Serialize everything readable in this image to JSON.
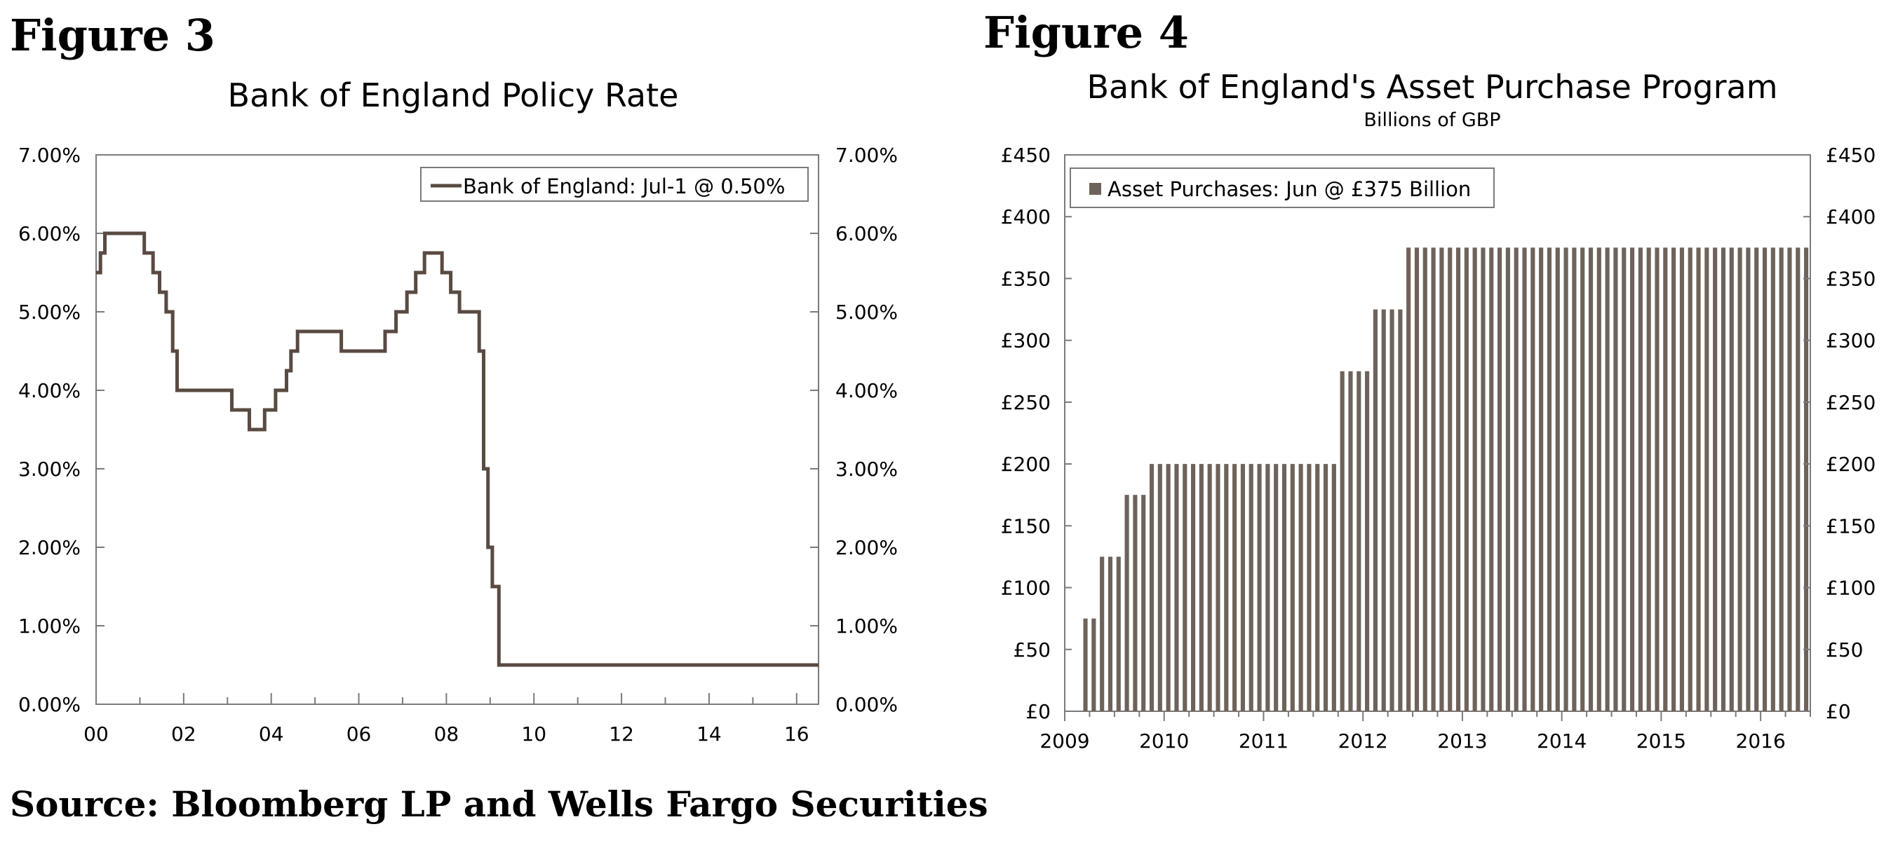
{
  "figures": [
    {
      "label": "Figure 3",
      "chart_data": {
        "type": "line",
        "title": "Bank of England Policy Rate",
        "subtitle": "",
        "xlabel": "",
        "ylabel": "",
        "x_unit": "year",
        "xlim": [
          2000.0,
          2016.5
        ],
        "ylim": [
          0,
          7
        ],
        "y_ticks": [
          "0.00%",
          "1.00%",
          "2.00%",
          "3.00%",
          "4.00%",
          "5.00%",
          "6.00%",
          "7.00%"
        ],
        "y_tick_values": [
          0,
          1,
          2,
          3,
          4,
          5,
          6,
          7
        ],
        "x_ticks": [
          "00",
          "02",
          "04",
          "06",
          "08",
          "10",
          "12",
          "14",
          "16"
        ],
        "x_tick_values": [
          2000,
          2002,
          2004,
          2006,
          2008,
          2010,
          2012,
          2014,
          2016
        ],
        "dual_axis": true,
        "grid": false,
        "legend_position": "top-right",
        "series": [
          {
            "name": "Bank of England: Jul-1 @ 0.50%",
            "color": "#594a42",
            "x": [
              2000.0,
              2000.1,
              2000.2,
              2001.1,
              2001.3,
              2001.45,
              2001.6,
              2001.75,
              2001.85,
              2003.1,
              2003.5,
              2003.85,
              2004.1,
              2004.35,
              2004.45,
              2004.6,
              2005.6,
              2006.6,
              2006.85,
              2007.1,
              2007.3,
              2007.5,
              2007.9,
              2008.1,
              2008.3,
              2008.75,
              2008.85,
              2008.95,
              2009.05,
              2009.2,
              2016.5
            ],
            "y": [
              5.5,
              5.75,
              6.0,
              5.75,
              5.5,
              5.25,
              5.0,
              4.5,
              4.0,
              3.75,
              3.5,
              3.75,
              4.0,
              4.25,
              4.5,
              4.75,
              4.5,
              4.75,
              5.0,
              5.25,
              5.5,
              5.75,
              5.5,
              5.25,
              5.0,
              4.5,
              3.0,
              2.0,
              1.5,
              0.5,
              0.5
            ]
          }
        ]
      }
    },
    {
      "label": "Figure 4",
      "chart_data": {
        "type": "bar",
        "title": "Bank of England's Asset Purchase Program",
        "subtitle": "Billions of GBP",
        "xlabel": "",
        "ylabel": "",
        "x_unit": "year",
        "xlim": [
          2009.0,
          2016.5
        ],
        "ylim": [
          0,
          450
        ],
        "y_ticks": [
          "£0",
          "£50",
          "£100",
          "£150",
          "£200",
          "£250",
          "£300",
          "£350",
          "£400",
          "£450"
        ],
        "y_tick_values": [
          0,
          50,
          100,
          150,
          200,
          250,
          300,
          350,
          400,
          450
        ],
        "x_ticks": [
          "2009",
          "2010",
          "2011",
          "2012",
          "2013",
          "2014",
          "2015",
          "2016"
        ],
        "x_tick_values": [
          2009,
          2010,
          2011,
          2012,
          2013,
          2014,
          2015,
          2016
        ],
        "dual_axis": true,
        "grid": false,
        "legend_position": "top-left",
        "bar_period": "monthly",
        "first_bar": "2009-03",
        "series": [
          {
            "name": "Asset Purchases: Jun @ £375 Billion",
            "color": "#6e625a",
            "values": [
              75,
              75,
              125,
              125,
              125,
              175,
              175,
              175,
              200,
              200,
              200,
              200,
              200,
              200,
              200,
              200,
              200,
              200,
              200,
              200,
              200,
              200,
              200,
              200,
              200,
              200,
              200,
              200,
              200,
              200,
              200,
              275,
              275,
              275,
              275,
              325,
              325,
              325,
              325,
              375,
              375,
              375,
              375,
              375,
              375,
              375,
              375,
              375,
              375,
              375,
              375,
              375,
              375,
              375,
              375,
              375,
              375,
              375,
              375,
              375,
              375,
              375,
              375,
              375,
              375,
              375,
              375,
              375,
              375,
              375,
              375,
              375,
              375,
              375,
              375,
              375,
              375,
              375,
              375,
              375,
              375,
              375,
              375,
              375,
              375,
              375,
              375,
              375
            ]
          }
        ]
      }
    }
  ],
  "source": "Source:  Bloomberg LP and Wells Fargo Securities"
}
